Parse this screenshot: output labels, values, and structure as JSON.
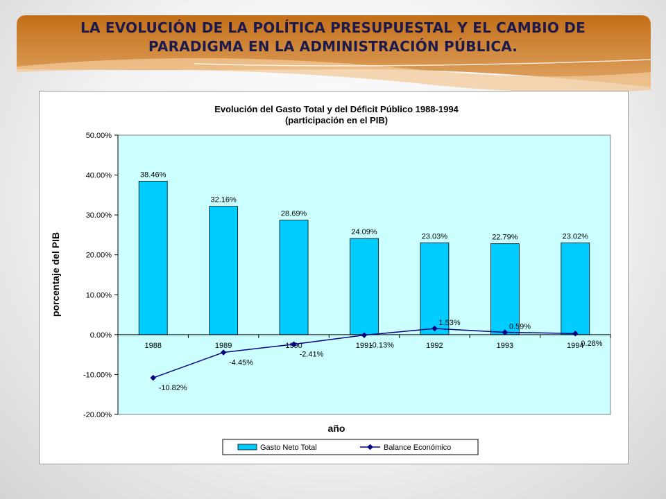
{
  "slide": {
    "title_line1": "LA EVOLUCIÓN DE LA POLÍTICA PRESUPUESTAL Y EL CAMBIO DE",
    "title_line2": "PARADIGMA EN LA ADMINISTRACIÓN PÚBLICA."
  },
  "colors": {
    "banner": "#c0731f",
    "bar": "#00ccff",
    "line": "#000080",
    "plot_bg": "#ccffff"
  },
  "chart_data": {
    "type": "bar",
    "title": "Evolución del Gasto Total y del Déficit Público 1988-1994",
    "subtitle": "(participación en el PIB)",
    "xlabel": "año",
    "ylabel": "porcentaje del PIB",
    "categories": [
      "1988",
      "1989",
      "1990",
      "1991",
      "1992",
      "1993",
      "1994"
    ],
    "ylim": [
      -20,
      50
    ],
    "yticks": [
      50,
      40,
      30,
      20,
      10,
      0,
      -10,
      -20
    ],
    "ytick_labels": [
      "50.00%",
      "40.00%",
      "30.00%",
      "20.00%",
      "10.00%",
      "0.00%",
      "-10.00%",
      "-20.00%"
    ],
    "grid": false,
    "legend_position": "bottom",
    "series": [
      {
        "name": "Gasto Neto Total",
        "type": "bar",
        "values": [
          38.46,
          32.16,
          28.69,
          24.09,
          23.03,
          22.79,
          23.02
        ],
        "labels": [
          "38.46%",
          "32.16%",
          "28.69%",
          "24.09%",
          "23.03%",
          "22.79%",
          "23.02%"
        ]
      },
      {
        "name": "Balance Económico",
        "type": "line",
        "values": [
          -10.82,
          -4.45,
          -2.41,
          -0.13,
          1.53,
          0.59,
          0.28
        ],
        "labels": [
          "-10.82%",
          "-4.45%",
          "-2.41%",
          "-0.13%",
          "1.53%",
          "0.59%",
          "0.28%"
        ]
      }
    ]
  }
}
